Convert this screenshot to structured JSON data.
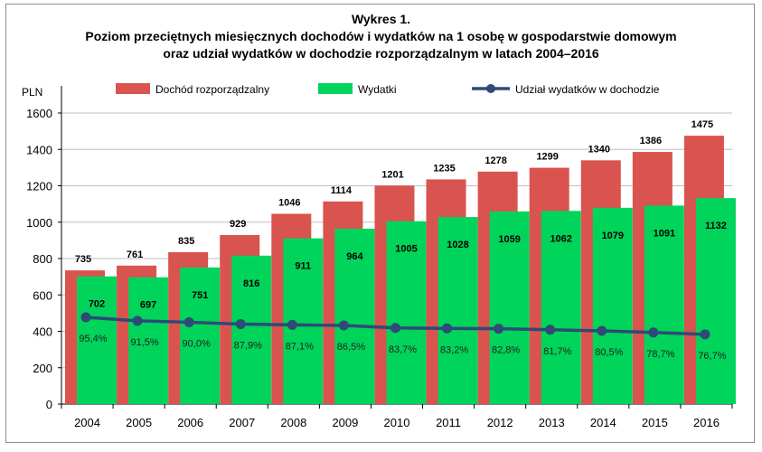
{
  "chart_data": {
    "type": "bar",
    "title": "Wykres 1.",
    "subtitle_lines": [
      "Poziom przeciętnych miesięcznych dochodów i wydatków na 1 osobę w gospodarstwie domowym",
      "oraz udział wydatków w dochodzie rozporządzalnym w latach 2004–2016"
    ],
    "ylabel": "PLN",
    "ylim": [
      0,
      1600
    ],
    "yticks": [
      0,
      200,
      400,
      600,
      800,
      1000,
      1200,
      1400,
      1600
    ],
    "grid": true,
    "legend_position": "top",
    "categories": [
      "2004",
      "2005",
      "2006",
      "2007",
      "2008",
      "2009",
      "2010",
      "2011",
      "2012",
      "2013",
      "2014",
      "2015",
      "2016"
    ],
    "series": [
      {
        "name": "Dochód rozporządzalny",
        "type": "bar",
        "color": "#d9534f",
        "values": [
          735,
          761,
          835,
          929,
          1046,
          1114,
          1201,
          1235,
          1278,
          1299,
          1340,
          1386,
          1475
        ]
      },
      {
        "name": "Wydatki",
        "type": "bar",
        "color": "#00d45a",
        "values": [
          702,
          697,
          751,
          816,
          911,
          964,
          1005,
          1028,
          1059,
          1062,
          1079,
          1091,
          1132
        ]
      },
      {
        "name": "Udział wydatków w dochodzie",
        "type": "line",
        "color": "#2f4a78",
        "unit": "%",
        "values": [
          95.4,
          91.5,
          90.0,
          87.9,
          87.1,
          86.5,
          83.7,
          83.2,
          82.8,
          81.7,
          80.5,
          78.7,
          76.7
        ],
        "labels": [
          "95,4%",
          "91,5%",
          "90,0%",
          "87,9%",
          "87,1%",
          "86,5%",
          "83,7%",
          "83,2%",
          "82,8%",
          "81,7%",
          "80,5%",
          "78,7%",
          "76,7%"
        ]
      }
    ]
  }
}
